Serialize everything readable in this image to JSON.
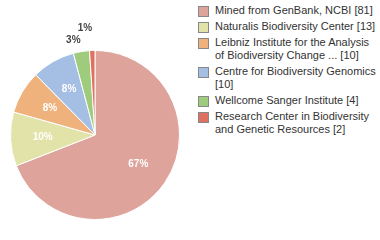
{
  "chart_data": {
    "type": "pie",
    "categories": [
      "Mined from GenBank, NCBI [81]",
      "Naturalis Biodiversity Center [13]",
      "Leibniz Institute for the Analysis of Biodiversity Change ... [10]",
      "Centre for Biodiversity Genomics [10]",
      "Wellcome Sanger Institute [4]",
      "Research Center in Biodiversity and Genetic Resources [2]"
    ],
    "values": [
      67,
      10,
      8,
      8,
      3,
      1
    ],
    "value_labels": [
      "67%",
      "10%",
      "8%",
      "8%",
      "3%",
      "1%"
    ],
    "colors": [
      "#dea39a",
      "#e2e3a8",
      "#efb27c",
      "#a5bee4",
      "#9fcb7c",
      "#e0705f"
    ],
    "legend": "top right",
    "data_labels": true
  }
}
